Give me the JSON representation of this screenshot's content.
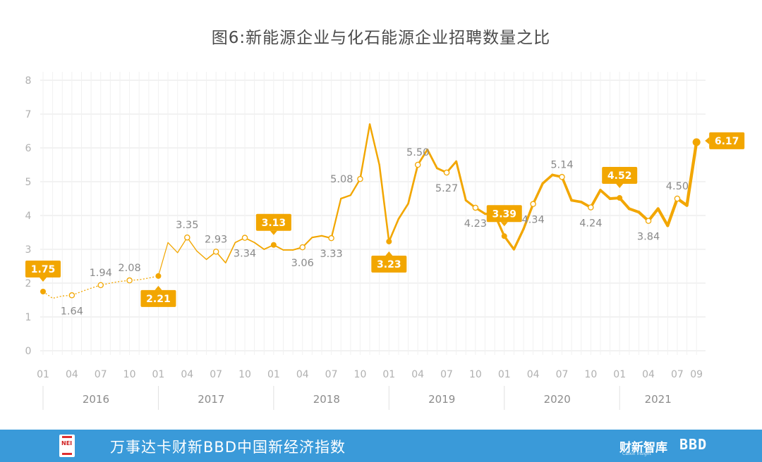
{
  "title": "图6:新能源企业与化石能源企业招聘数量之比",
  "footer": {
    "title": "万事达卡财新BBD中国新经济指数",
    "logo_text": "NEI",
    "brand1": "财新智库",
    "brand1_sub": "Caixin Insight",
    "brand2": "BBD",
    "bg_color": "#3a9ad9"
  },
  "colors": {
    "line": "#f2a600",
    "label_box": "#f2a600",
    "grid": "#e6e6e6",
    "axis_text": "#b0b0b0",
    "data_label": "#8a8a8a"
  },
  "chart_data": {
    "type": "line",
    "title": "图6:新能源企业与化石能源企业招聘数量之比",
    "ylim": [
      0,
      8
    ],
    "y_ticks": [
      "0",
      "1",
      "2",
      "3",
      "4",
      "5",
      "6",
      "7",
      "8"
    ],
    "x_start": "2016-01",
    "x_end": "2021-09",
    "month_tick_labels": [
      {
        "month": "2016-01",
        "label": "01"
      },
      {
        "month": "2016-04",
        "label": "04"
      },
      {
        "month": "2016-07",
        "label": "07"
      },
      {
        "month": "2016-10",
        "label": "10"
      },
      {
        "month": "2017-01",
        "label": "01"
      },
      {
        "month": "2017-04",
        "label": "04"
      },
      {
        "month": "2017-07",
        "label": "07"
      },
      {
        "month": "2017-10",
        "label": "10"
      },
      {
        "month": "2018-01",
        "label": "01"
      },
      {
        "month": "2018-04",
        "label": "04"
      },
      {
        "month": "2018-07",
        "label": "07"
      },
      {
        "month": "2018-10",
        "label": "10"
      },
      {
        "month": "2019-01",
        "label": "01"
      },
      {
        "month": "2019-04",
        "label": "04"
      },
      {
        "month": "2019-07",
        "label": "07"
      },
      {
        "month": "2019-10",
        "label": "10"
      },
      {
        "month": "2020-01",
        "label": "01"
      },
      {
        "month": "2020-04",
        "label": "04"
      },
      {
        "month": "2020-07",
        "label": "07"
      },
      {
        "month": "2020-10",
        "label": "10"
      },
      {
        "month": "2021-01",
        "label": "01"
      },
      {
        "month": "2021-04",
        "label": "04"
      },
      {
        "month": "2021-07",
        "label": "07"
      },
      {
        "month": "2021-09",
        "label": "09"
      }
    ],
    "years": [
      {
        "label": "2016",
        "from": "2016-01",
        "to": "2016-12"
      },
      {
        "label": "2017",
        "from": "2017-01",
        "to": "2017-12"
      },
      {
        "label": "2018",
        "from": "2018-01",
        "to": "2018-12"
      },
      {
        "label": "2019",
        "from": "2019-01",
        "to": "2019-12"
      },
      {
        "label": "2020",
        "from": "2020-01",
        "to": "2020-12"
      },
      {
        "label": "2021",
        "from": "2021-01",
        "to": "2021-09"
      }
    ],
    "dotted_series": {
      "x": [
        "2016-01",
        "2016-02",
        "2016-03",
        "2016-04",
        "2016-05",
        "2016-06",
        "2016-07",
        "2016-08",
        "2016-09",
        "2016-10",
        "2016-11",
        "2016-12",
        "2017-01"
      ],
      "values": [
        1.75,
        1.55,
        1.62,
        1.64,
        1.75,
        1.85,
        1.94,
        2.0,
        2.05,
        2.08,
        2.1,
        2.15,
        2.21
      ]
    },
    "series": [
      {
        "x": [
          "2017-01",
          "2017-02",
          "2017-03",
          "2017-04",
          "2017-05",
          "2017-06",
          "2017-07",
          "2017-08",
          "2017-09",
          "2017-10",
          "2017-11",
          "2017-12",
          "2018-01",
          "2018-02",
          "2018-03",
          "2018-04",
          "2018-05",
          "2018-06",
          "2018-07",
          "2018-08",
          "2018-09",
          "2018-10",
          "2018-11",
          "2018-12",
          "2019-01",
          "2019-02",
          "2019-03",
          "2019-04",
          "2019-05",
          "2019-06",
          "2019-07",
          "2019-08",
          "2019-09",
          "2019-10",
          "2019-11",
          "2019-12",
          "2020-01",
          "2020-02",
          "2020-03",
          "2020-04",
          "2020-05",
          "2020-06",
          "2020-07",
          "2020-08",
          "2020-09",
          "2020-10",
          "2020-11",
          "2020-12",
          "2021-01",
          "2021-02",
          "2021-03",
          "2021-04",
          "2021-05",
          "2021-06",
          "2021-07",
          "2021-08",
          "2021-09"
        ],
        "values": [
          2.21,
          3.2,
          2.9,
          3.35,
          2.95,
          2.7,
          2.93,
          2.6,
          3.2,
          3.34,
          3.2,
          3.0,
          3.13,
          2.98,
          2.98,
          3.06,
          3.35,
          3.4,
          3.33,
          4.5,
          4.6,
          5.08,
          6.7,
          5.5,
          3.23,
          3.9,
          4.35,
          5.5,
          5.95,
          5.4,
          5.27,
          5.6,
          4.45,
          4.23,
          4.05,
          4.03,
          3.39,
          3.0,
          3.6,
          4.34,
          4.95,
          5.2,
          5.14,
          4.45,
          4.4,
          4.24,
          4.75,
          4.5,
          4.52,
          4.2,
          4.1,
          3.84,
          4.2,
          3.7,
          4.5,
          4.3,
          6.17
        ]
      }
    ],
    "annotations": [
      {
        "x": "2016-01",
        "value": 1.75,
        "label": "1.75",
        "style": "box",
        "pos": "above",
        "marker": "solid"
      },
      {
        "x": "2016-04",
        "value": 1.64,
        "label": "1.64",
        "style": "text",
        "pos": "below",
        "marker": "hollow"
      },
      {
        "x": "2016-07",
        "value": 1.94,
        "label": "1.94",
        "style": "text",
        "pos": "above",
        "marker": "hollow"
      },
      {
        "x": "2016-10",
        "value": 2.08,
        "label": "2.08",
        "style": "text",
        "pos": "above",
        "marker": "hollow"
      },
      {
        "x": "2017-01",
        "value": 2.21,
        "label": "2.21",
        "style": "box",
        "pos": "below",
        "marker": "solid"
      },
      {
        "x": "2017-04",
        "value": 3.35,
        "label": "3.35",
        "style": "text",
        "pos": "above",
        "marker": "hollow"
      },
      {
        "x": "2017-07",
        "value": 2.93,
        "label": "2.93",
        "style": "text",
        "pos": "above",
        "marker": "hollow"
      },
      {
        "x": "2017-10",
        "value": 3.34,
        "label": "3.34",
        "style": "text",
        "pos": "below",
        "marker": "hollow"
      },
      {
        "x": "2018-01",
        "value": 3.13,
        "label": "3.13",
        "style": "box",
        "pos": "above",
        "marker": "solid"
      },
      {
        "x": "2018-04",
        "value": 3.06,
        "label": "3.06",
        "style": "text",
        "pos": "below",
        "marker": "hollow"
      },
      {
        "x": "2018-07",
        "value": 3.33,
        "label": "3.33",
        "style": "text",
        "pos": "below",
        "marker": "hollow"
      },
      {
        "x": "2018-10",
        "value": 5.08,
        "label": "5.08",
        "style": "text",
        "pos": "left",
        "marker": "hollow"
      },
      {
        "x": "2019-01",
        "value": 3.23,
        "label": "3.23",
        "style": "box",
        "pos": "below",
        "marker": "solid"
      },
      {
        "x": "2019-04",
        "value": 5.5,
        "label": "5.50",
        "style": "text",
        "pos": "above",
        "marker": "hollow"
      },
      {
        "x": "2019-07",
        "value": 5.27,
        "label": "5.27",
        "style": "text",
        "pos": "below",
        "marker": "hollow"
      },
      {
        "x": "2019-10",
        "value": 4.23,
        "label": "4.23",
        "style": "text",
        "pos": "below",
        "marker": "hollow"
      },
      {
        "x": "2020-01",
        "value": 3.39,
        "label": "3.39",
        "style": "box",
        "pos": "above",
        "marker": "solid"
      },
      {
        "x": "2020-04",
        "value": 4.34,
        "label": "4.34",
        "style": "text",
        "pos": "below",
        "marker": "hollow"
      },
      {
        "x": "2020-07",
        "value": 5.14,
        "label": "5.14",
        "style": "text",
        "pos": "above",
        "marker": "hollow"
      },
      {
        "x": "2020-10",
        "value": 4.24,
        "label": "4.24",
        "style": "text",
        "pos": "below",
        "marker": "hollow"
      },
      {
        "x": "2021-01",
        "value": 4.52,
        "label": "4.52",
        "style": "box",
        "pos": "above",
        "marker": "solid"
      },
      {
        "x": "2021-04",
        "value": 3.84,
        "label": "3.84",
        "style": "text",
        "pos": "below",
        "marker": "hollow"
      },
      {
        "x": "2021-07",
        "value": 4.5,
        "label": "4.50",
        "style": "text",
        "pos": "above",
        "marker": "hollow"
      },
      {
        "x": "2021-09",
        "value": 6.17,
        "label": "6.17",
        "style": "box",
        "pos": "right",
        "marker": "solid"
      }
    ]
  }
}
